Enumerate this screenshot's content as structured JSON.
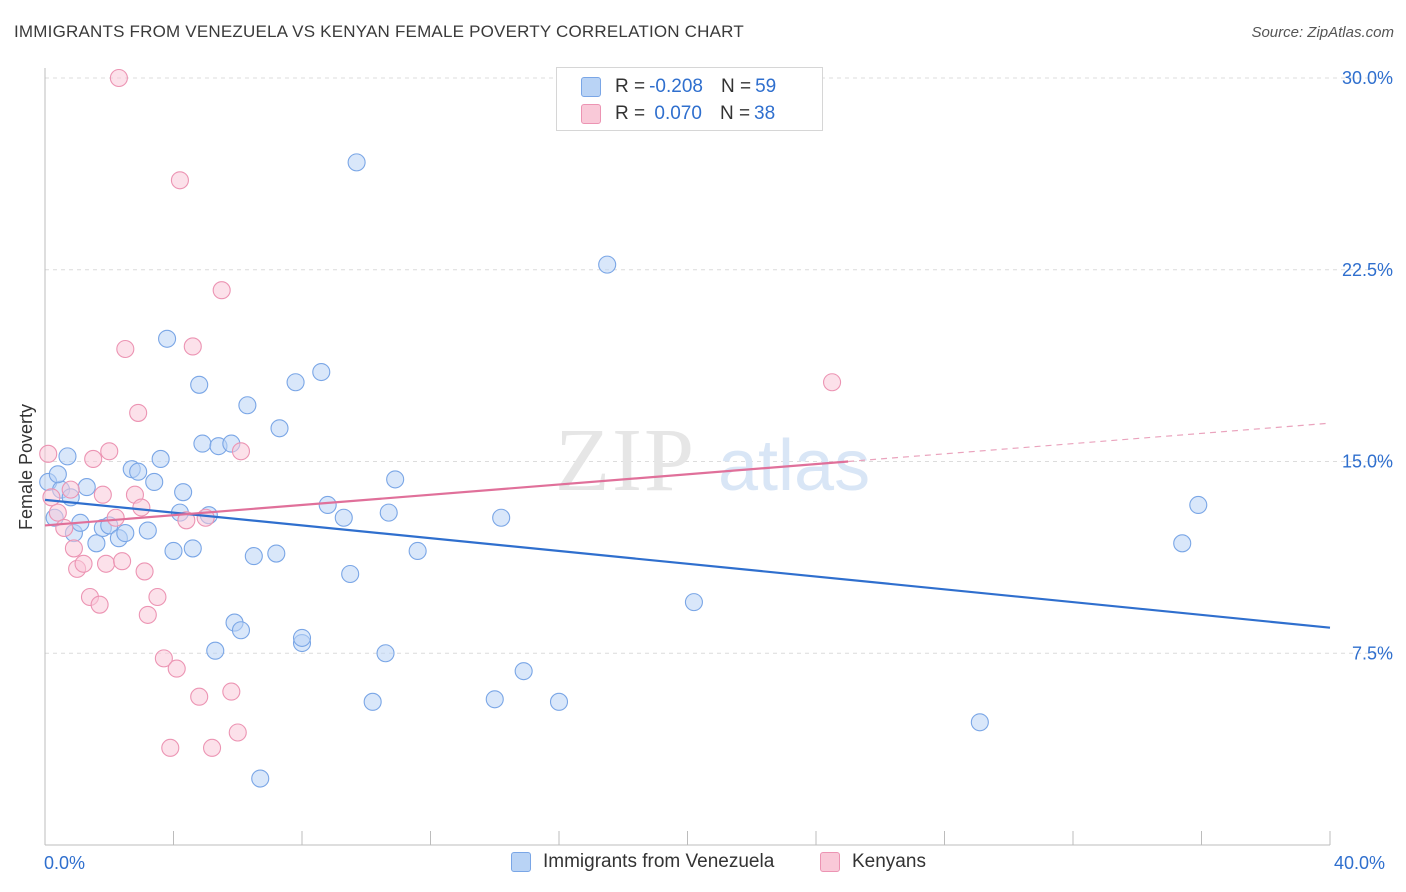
{
  "header": {
    "title": "IMMIGRANTS FROM VENEZUELA VS KENYAN FEMALE POVERTY CORRELATION CHART",
    "source": "Source: ZipAtlas.com"
  },
  "watermark": {
    "zip": "ZIP",
    "atlas": "atlas"
  },
  "legend": {
    "rows": [
      {
        "r_label": "R = ",
        "r_value": "-0.208",
        "n_label": "N = ",
        "n_value": "59",
        "color": "#7aa6e6"
      },
      {
        "r_label": "R = ",
        "r_value": " 0.070",
        "n_label": "N = ",
        "n_value": "38",
        "color": "#ec94b3"
      }
    ]
  },
  "bottom_legend": {
    "items": [
      {
        "label": "Immigrants from Venezuela",
        "color": "#b9d3f5"
      },
      {
        "label": "Kenyans",
        "color": "#f9c9d8"
      }
    ]
  },
  "chart_data": {
    "type": "scatter",
    "title": "IMMIGRANTS FROM VENEZUELA VS KENYAN FEMALE POVERTY CORRELATION CHART",
    "xlabel": "",
    "ylabel": "Female Poverty",
    "xlim": [
      0,
      40
    ],
    "ylim": [
      0,
      30
    ],
    "x_tick_labels": [
      "0.0%",
      "40.0%"
    ],
    "y_ticks": [
      7.5,
      15.0,
      22.5,
      30.0
    ],
    "y_tick_labels": [
      "7.5%",
      "15.0%",
      "22.5%",
      "30.0%"
    ],
    "grid": true,
    "series": [
      {
        "name": "Immigrants from Venezuela",
        "color": "#7aa6e6",
        "fill": "#b9d3f5",
        "trend": {
          "x0": 0,
          "y0": 13.5,
          "x1": 40,
          "y1": 8.5
        },
        "points": [
          [
            0.1,
            14.2
          ],
          [
            0.3,
            12.8
          ],
          [
            0.5,
            13.9
          ],
          [
            0.7,
            15.2
          ],
          [
            0.8,
            13.6
          ],
          [
            0.9,
            12.2
          ],
          [
            1.1,
            12.6
          ],
          [
            1.3,
            14.0
          ],
          [
            1.6,
            11.8
          ],
          [
            1.8,
            12.4
          ],
          [
            2.0,
            12.5
          ],
          [
            2.3,
            12.0
          ],
          [
            2.5,
            12.2
          ],
          [
            2.7,
            14.7
          ],
          [
            2.9,
            14.6
          ],
          [
            3.2,
            12.3
          ],
          [
            3.4,
            14.2
          ],
          [
            3.6,
            15.1
          ],
          [
            3.8,
            19.8
          ],
          [
            4.0,
            11.5
          ],
          [
            4.2,
            13.0
          ],
          [
            4.3,
            13.8
          ],
          [
            4.6,
            11.6
          ],
          [
            4.8,
            18.0
          ],
          [
            4.9,
            15.7
          ],
          [
            5.1,
            12.9
          ],
          [
            5.3,
            7.6
          ],
          [
            5.4,
            15.6
          ],
          [
            5.8,
            15.7
          ],
          [
            5.9,
            8.7
          ],
          [
            6.1,
            8.4
          ],
          [
            6.3,
            17.2
          ],
          [
            6.5,
            11.3
          ],
          [
            6.7,
            2.6
          ],
          [
            7.2,
            11.4
          ],
          [
            7.3,
            16.3
          ],
          [
            7.8,
            18.1
          ],
          [
            8.0,
            7.9
          ],
          [
            8.0,
            8.1
          ],
          [
            8.6,
            18.5
          ],
          [
            8.8,
            13.3
          ],
          [
            9.3,
            12.8
          ],
          [
            9.5,
            10.6
          ],
          [
            9.7,
            26.7
          ],
          [
            10.2,
            5.6
          ],
          [
            10.6,
            7.5
          ],
          [
            10.7,
            13.0
          ],
          [
            10.9,
            14.3
          ],
          [
            11.6,
            11.5
          ],
          [
            14.0,
            5.7
          ],
          [
            14.2,
            12.8
          ],
          [
            14.9,
            6.8
          ],
          [
            16.0,
            5.6
          ],
          [
            17.5,
            22.7
          ],
          [
            20.2,
            9.5
          ],
          [
            29.1,
            4.8
          ],
          [
            35.4,
            11.8
          ],
          [
            35.9,
            13.3
          ],
          [
            0.4,
            14.5
          ]
        ]
      },
      {
        "name": "Kenyans",
        "color": "#ec94b3",
        "fill": "#f9c9d8",
        "trend": {
          "x0": 0,
          "y0": 12.5,
          "x1": 40,
          "y1": 16.5,
          "solid_until": 25
        },
        "points": [
          [
            0.1,
            15.3
          ],
          [
            0.2,
            13.6
          ],
          [
            0.4,
            13.0
          ],
          [
            0.6,
            12.4
          ],
          [
            0.8,
            13.9
          ],
          [
            0.9,
            11.6
          ],
          [
            1.0,
            10.8
          ],
          [
            1.2,
            11.0
          ],
          [
            1.4,
            9.7
          ],
          [
            1.5,
            15.1
          ],
          [
            1.7,
            9.4
          ],
          [
            1.8,
            13.7
          ],
          [
            1.9,
            11.0
          ],
          [
            2.0,
            15.4
          ],
          [
            2.2,
            12.8
          ],
          [
            2.4,
            11.1
          ],
          [
            2.5,
            19.4
          ],
          [
            2.8,
            13.7
          ],
          [
            2.9,
            16.9
          ],
          [
            3.0,
            13.2
          ],
          [
            3.1,
            10.7
          ],
          [
            3.2,
            9.0
          ],
          [
            3.5,
            9.7
          ],
          [
            3.7,
            7.3
          ],
          [
            3.9,
            3.8
          ],
          [
            4.1,
            6.9
          ],
          [
            4.2,
            26.0
          ],
          [
            4.4,
            12.7
          ],
          [
            4.6,
            19.5
          ],
          [
            4.8,
            5.8
          ],
          [
            5.0,
            12.8
          ],
          [
            5.2,
            3.8
          ],
          [
            5.5,
            21.7
          ],
          [
            5.8,
            6.0
          ],
          [
            6.0,
            4.4
          ],
          [
            6.1,
            15.4
          ],
          [
            24.5,
            18.1
          ],
          [
            2.3,
            30.0
          ]
        ]
      }
    ]
  }
}
